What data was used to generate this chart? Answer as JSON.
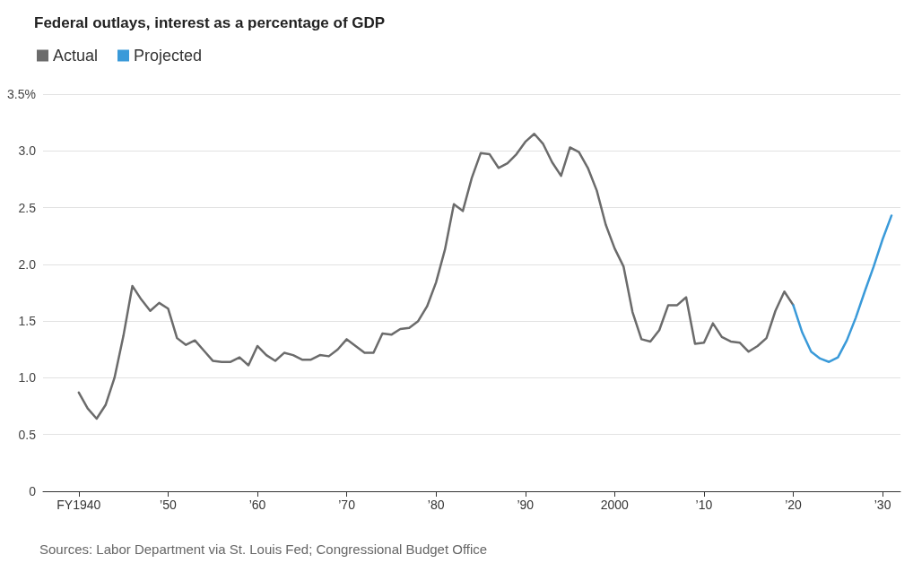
{
  "chart_data": {
    "type": "line",
    "title": "Federal outlays, interest as a percentage of GDP",
    "legend": "top left",
    "grid": "y",
    "marker": "none",
    "line_style": "solid",
    "series": [
      {
        "name": "Actual",
        "color": "#6b6b6b",
        "x": [
          1940,
          1941,
          1942,
          1943,
          1944,
          1945,
          1946,
          1947,
          1948,
          1949,
          1950,
          1951,
          1952,
          1953,
          1954,
          1955,
          1956,
          1957,
          1958,
          1959,
          1960,
          1961,
          1962,
          1963,
          1964,
          1965,
          1966,
          1967,
          1968,
          1969,
          1970,
          1971,
          1972,
          1973,
          1974,
          1975,
          1976,
          1977,
          1978,
          1979,
          1980,
          1981,
          1982,
          1983,
          1984,
          1985,
          1986,
          1987,
          1988,
          1989,
          1990,
          1991,
          1992,
          1993,
          1994,
          1995,
          1996,
          1997,
          1998,
          1999,
          2000,
          2001,
          2002,
          2003,
          2004,
          2005,
          2006,
          2007,
          2008,
          2009,
          2010,
          2011,
          2012,
          2013,
          2014,
          2015,
          2016,
          2017,
          2018,
          2019,
          2020
        ],
        "values": [
          0.87,
          0.73,
          0.64,
          0.76,
          1.0,
          1.37,
          1.81,
          1.69,
          1.59,
          1.66,
          1.61,
          1.35,
          1.29,
          1.33,
          1.24,
          1.15,
          1.14,
          1.14,
          1.18,
          1.11,
          1.28,
          1.2,
          1.15,
          1.22,
          1.2,
          1.16,
          1.16,
          1.2,
          1.19,
          1.25,
          1.34,
          1.28,
          1.22,
          1.22,
          1.39,
          1.38,
          1.43,
          1.44,
          1.5,
          1.63,
          1.84,
          2.13,
          2.53,
          2.47,
          2.76,
          2.98,
          2.97,
          2.85,
          2.89,
          2.97,
          3.08,
          3.15,
          3.06,
          2.9,
          2.78,
          3.03,
          2.99,
          2.85,
          2.65,
          2.35,
          2.14,
          1.98,
          1.58,
          1.34,
          1.32,
          1.42,
          1.64,
          1.64,
          1.71,
          1.3,
          1.31,
          1.48,
          1.36,
          1.32,
          1.31,
          1.23,
          1.28,
          1.35,
          1.59,
          1.76,
          1.64
        ]
      },
      {
        "name": "Projected",
        "color": "#3a9ad9",
        "x": [
          2020,
          2021,
          2022,
          2023,
          2024,
          2025,
          2026,
          2027,
          2028,
          2029,
          2030,
          2031
        ],
        "values": [
          1.64,
          1.4,
          1.23,
          1.17,
          1.14,
          1.18,
          1.33,
          1.53,
          1.76,
          1.98,
          2.22,
          2.43
        ]
      }
    ],
    "xlim": [
      1936,
      2032
    ],
    "xticks": [
      {
        "value": 1940,
        "label": "FY1940"
      },
      {
        "value": 1950,
        "label": "’50"
      },
      {
        "value": 1960,
        "label": "’60"
      },
      {
        "value": 1970,
        "label": "’70"
      },
      {
        "value": 1980,
        "label": "’80"
      },
      {
        "value": 1990,
        "label": "’90"
      },
      2000,
      {
        "value": 2010,
        "label": "’10"
      },
      {
        "value": 2020,
        "label": "’20"
      },
      {
        "value": 2030,
        "label": "’30"
      }
    ],
    "ylim": [
      0,
      3.5
    ],
    "yticks": [
      0,
      0.5,
      {
        "value": 1,
        "label": "1.0"
      },
      1.5,
      {
        "value": 2,
        "label": "2.0"
      },
      2.5,
      {
        "value": 3,
        "label": "3.0"
      },
      {
        "value": 3.5,
        "label": "3.5%"
      }
    ],
    "annotations": [
      "Sources: Labor Department via St. Louis Fed; Congressional Budget Office"
    ]
  }
}
